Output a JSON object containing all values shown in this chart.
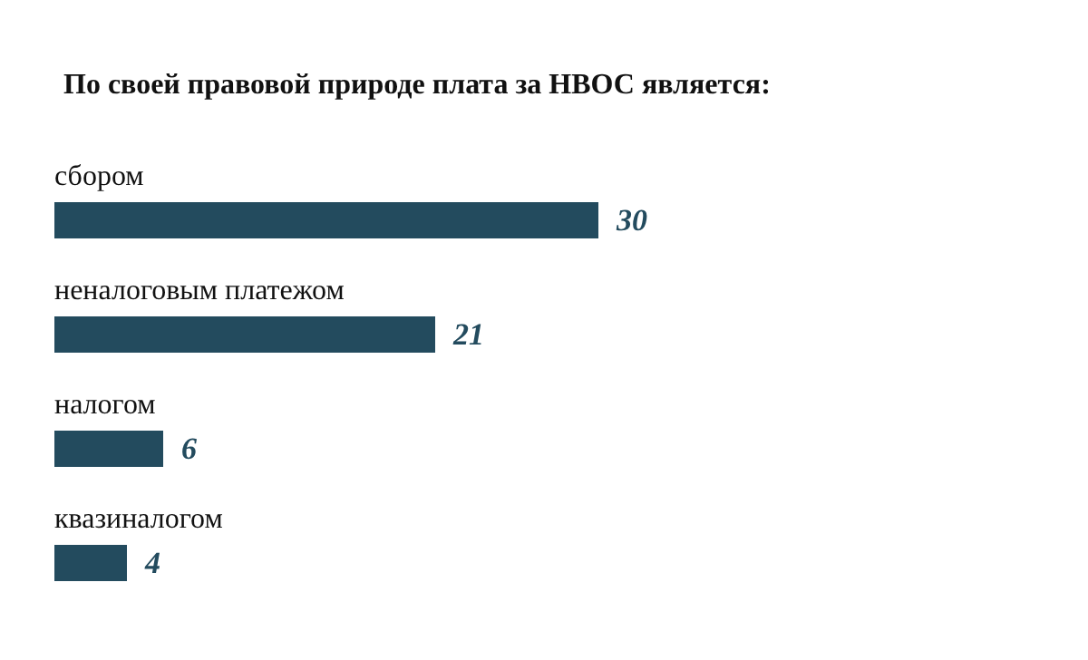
{
  "chart_data": {
    "type": "bar",
    "orientation": "horizontal",
    "title": "По своей правовой природе плата за НВОС является:",
    "categories": [
      "сбором",
      "неналоговым платежом",
      "налогом",
      "квазиналогом"
    ],
    "values": [
      30,
      21,
      6,
      4
    ],
    "color": "#234b5e",
    "data_labels": true,
    "tick_labels": "y"
  }
}
